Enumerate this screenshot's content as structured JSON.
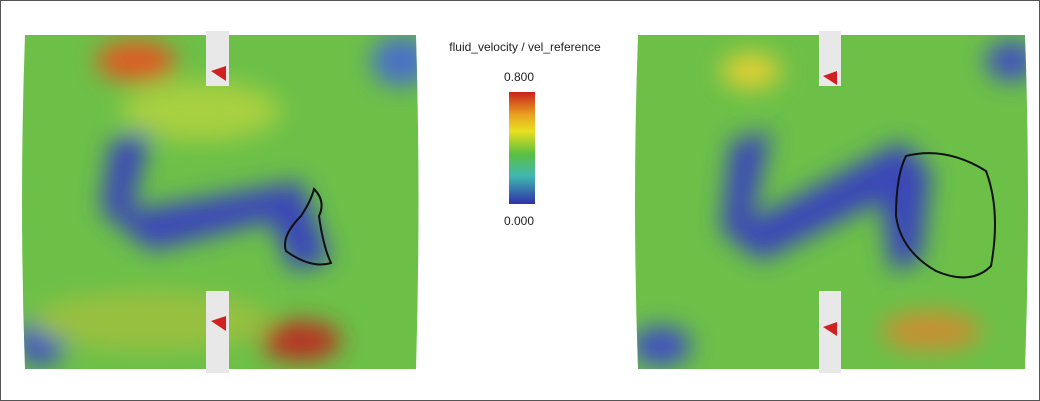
{
  "colorbar": {
    "title": "fluid_velocity / vel_reference",
    "ticks": [
      "0.800",
      "0.000"
    ]
  }
}
